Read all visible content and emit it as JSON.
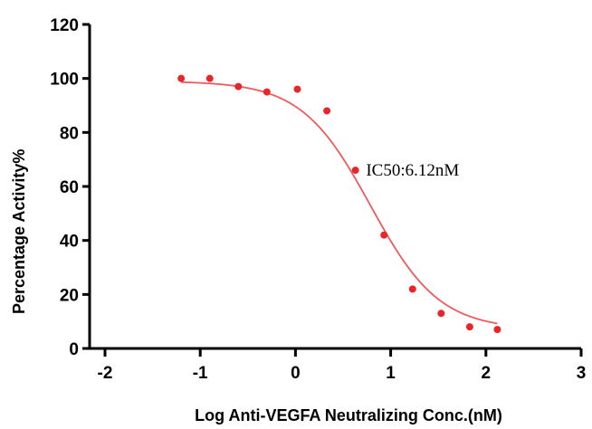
{
  "chart_data": {
    "type": "scatter",
    "title": "",
    "xlabel": "Log Anti-VEGFA Neutralizing Conc.(nM)",
    "ylabel": "Percentage Activity%",
    "xlim": [
      -2,
      3
    ],
    "ylim": [
      0,
      120
    ],
    "x_ticks": [
      "-2",
      "-1",
      "0",
      "1",
      "2",
      "3"
    ],
    "y_ticks": [
      "0",
      "20",
      "40",
      "60",
      "80",
      "100",
      "120"
    ],
    "grid": false,
    "legend": "none",
    "series": [
      {
        "kind": "points",
        "color": "#e8262a",
        "x": [
          -1.2,
          -0.9,
          -0.6,
          -0.3,
          0.02,
          0.33,
          0.63,
          0.93,
          1.23,
          1.53,
          1.83,
          2.12
        ],
        "y": [
          100,
          100,
          97,
          95,
          96,
          88,
          66,
          42,
          22,
          13,
          8,
          7
        ]
      },
      {
        "kind": "fit-curve",
        "color": "#ee5a5e",
        "model": "four-parameter logistic",
        "top": 99,
        "bottom": 7,
        "log_ic50": 0.787,
        "hill_slope": -1.2,
        "x_range": [
          -1.2,
          2.12
        ]
      }
    ],
    "annotations": [
      {
        "text": "IC50:6.12nM",
        "x": 1.23,
        "y": 64
      }
    ]
  }
}
